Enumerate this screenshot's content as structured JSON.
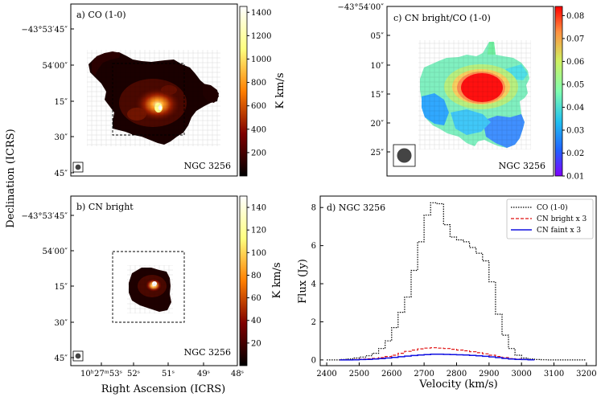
{
  "figure": {
    "ylabel_left": "Declination (ICRS)",
    "xlabel_left": "Right Ascension (ICRS)"
  },
  "panel_a": {
    "title": "a) CO (1-0)",
    "source": "NGC 3256",
    "colorbar": {
      "label": "K km/s",
      "ticks": [
        "1400",
        "1200",
        "1000",
        "800",
        "600",
        "400",
        "200"
      ],
      "range": [
        0,
        1450
      ],
      "cmap": "afmhot"
    },
    "dec_ticks": [
      "−43°53′45″",
      "54′00″",
      "15″",
      "30″",
      "45″"
    ]
  },
  "panel_b": {
    "title": "b) CN bright",
    "source": "NGC 3256",
    "colorbar": {
      "label": "K km/s",
      "ticks": [
        "140",
        "120",
        "100",
        "80",
        "60",
        "40",
        "20"
      ],
      "range": [
        0,
        150
      ],
      "cmap": "afmhot"
    },
    "dec_ticks": [
      "−43°53′45″",
      "54′00″",
      "15″",
      "30″",
      "45″"
    ],
    "ra_ticks": [
      "10ʰ27ᵐ53ˢ",
      "52ˢ",
      "51ˢ",
      "49ˢ",
      "48ˢ"
    ]
  },
  "panel_c": {
    "title": "c) CN bright/CO (1-0)",
    "source": "NGC 3256",
    "colorbar": {
      "ticks": [
        "0.08",
        "0.07",
        "0.06",
        "0.05",
        "0.04",
        "0.03",
        "0.02",
        "0.01"
      ],
      "range": [
        0.01,
        0.084
      ],
      "cmap": "rainbow"
    },
    "dec_ticks": [
      "−43°54′00″",
      "05″",
      "10″",
      "15″",
      "20″",
      "25″"
    ]
  },
  "chart_data": {
    "type": "line",
    "title": "d) NGC 3256",
    "xlabel": "Velocity (km/s)",
    "ylabel": "Flux (Jy)",
    "xlim": [
      2380,
      3230
    ],
    "ylim": [
      -0.3,
      8.6
    ],
    "xticks": [
      2400,
      2500,
      2600,
      2700,
      2800,
      2900,
      3000,
      3100,
      3200
    ],
    "yticks": [
      0,
      2,
      4,
      6,
      8
    ],
    "legend_position": "top-right",
    "x": [
      2410,
      2430,
      2450,
      2470,
      2490,
      2510,
      2530,
      2550,
      2570,
      2590,
      2610,
      2630,
      2650,
      2670,
      2690,
      2710,
      2730,
      2750,
      2770,
      2790,
      2810,
      2830,
      2850,
      2870,
      2890,
      2910,
      2930,
      2950,
      2970,
      2990,
      3010,
      3030,
      3050,
      3070,
      3090,
      3110,
      3130,
      3150,
      3170,
      3190
    ],
    "series": [
      {
        "name": "CO (1-0)",
        "color": "#000000",
        "style": "dotted",
        "values": [
          0.0,
          0.0,
          0.02,
          0.05,
          0.1,
          0.15,
          0.22,
          0.35,
          0.6,
          1.0,
          1.7,
          2.5,
          3.3,
          4.7,
          6.2,
          7.6,
          8.25,
          8.2,
          7.1,
          6.45,
          6.3,
          6.2,
          5.9,
          5.6,
          5.2,
          4.1,
          2.4,
          1.3,
          0.6,
          0.25,
          0.1,
          0.05,
          0.02,
          0.01,
          0.0,
          0.0,
          0.0,
          0.0,
          0.0,
          0.0
        ]
      },
      {
        "name": "CN bright x 3",
        "color": "#e01010",
        "style": "dashed",
        "values": [
          null,
          null,
          0.0,
          0.0,
          0.02,
          0.04,
          0.06,
          0.08,
          0.12,
          0.18,
          0.25,
          0.35,
          0.45,
          0.52,
          0.58,
          0.62,
          0.64,
          0.62,
          0.6,
          0.56,
          0.52,
          0.48,
          0.43,
          0.38,
          0.32,
          0.25,
          0.18,
          0.12,
          0.07,
          0.04,
          0.02,
          0.01,
          null,
          null,
          null,
          null,
          null,
          null,
          null,
          null
        ]
      },
      {
        "name": "CN faint x 3",
        "color": "#1010e0",
        "style": "solid",
        "values": [
          null,
          null,
          0.0,
          0.0,
          0.01,
          0.02,
          0.03,
          0.05,
          0.07,
          0.1,
          0.13,
          0.17,
          0.2,
          0.23,
          0.26,
          0.28,
          0.3,
          0.3,
          0.29,
          0.28,
          0.27,
          0.26,
          0.24,
          0.22,
          0.19,
          0.16,
          0.12,
          0.08,
          0.05,
          0.03,
          0.02,
          0.01,
          null,
          null,
          null,
          null,
          null,
          null,
          null,
          null
        ]
      }
    ]
  }
}
